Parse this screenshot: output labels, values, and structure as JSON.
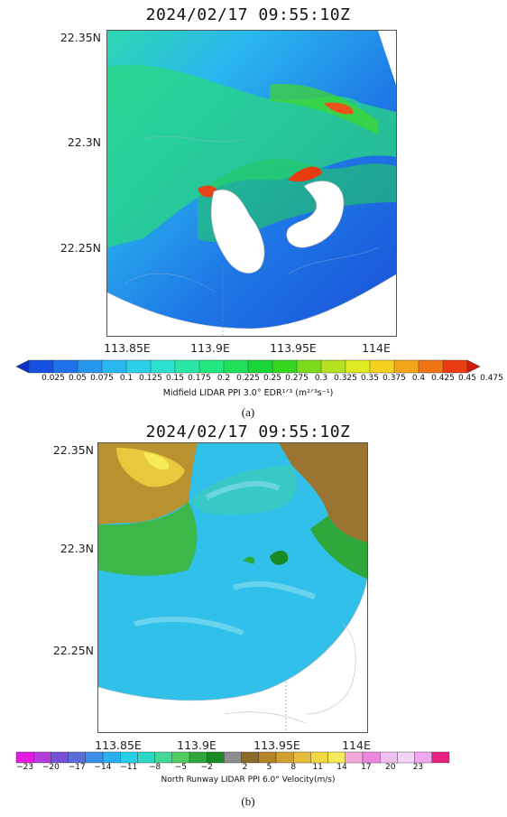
{
  "panel_a": {
    "title": "2024/02/17  09:55:10Z",
    "y_ticks": [
      "22.35N",
      "22.3N",
      "22.25N"
    ],
    "x_ticks": [
      "113.85E",
      "113.9E",
      "113.95E",
      "114E"
    ],
    "colorbar": {
      "ticks": [
        "0.025",
        "0.05",
        "0.075",
        "0.1",
        "0.125",
        "0.15",
        "0.175",
        "0.2",
        "0.225",
        "0.25",
        "0.275",
        "0.3",
        "0.325",
        "0.35",
        "0.375",
        "0.4",
        "0.425",
        "0.45",
        "0.475"
      ],
      "colors": [
        "#1030c8",
        "#1650e0",
        "#1e72ea",
        "#2496ee",
        "#28b6ee",
        "#2ccfe8",
        "#2ce0d0",
        "#28e8a8",
        "#22e880",
        "#1ee05a",
        "#18d63a",
        "#34d61e",
        "#7ada1c",
        "#b4e21e",
        "#e0ea22",
        "#f6d020",
        "#f4a418",
        "#f07414",
        "#e83c10",
        "#d41a0c"
      ],
      "label": "Midfield LIDAR PPI 3.0° EDR¹ᐟ³ (m²ᐟ³s⁻¹)"
    },
    "caption": "(a)"
  },
  "panel_b": {
    "title": "2024/02/17  09:55:10Z",
    "y_ticks": [
      "22.35N",
      "22.3N",
      "22.25N"
    ],
    "x_ticks": [
      "113.85E",
      "113.9E",
      "113.95E",
      "114E"
    ],
    "colorbar": {
      "ticks": [
        "−23",
        "−20",
        "−17",
        "−14",
        "−11",
        "−8",
        "−5",
        "−2",
        "2",
        "5",
        "8",
        "11",
        "14",
        "17",
        "20",
        "23"
      ],
      "colors": [
        "#e21ae2",
        "#b43cdc",
        "#7850d8",
        "#5a6ed8",
        "#3c8ee6",
        "#2ab0f0",
        "#26cfe8",
        "#2cd8c2",
        "#44d898",
        "#52cc60",
        "#2ea83a",
        "#1a8a26",
        "#8c8c8c",
        "#8a6a28",
        "#b4842a",
        "#d2a032",
        "#e6bc3a",
        "#f2d842",
        "#f6ea58",
        "#f2a8d8",
        "#ec88e0",
        "#f0c0f0",
        "#f4d4f6",
        "#f0a8f0",
        "#e82080"
      ],
      "label": "North Runway LIDAR PPI 6.0° Velocity(m/s)"
    },
    "caption": "(b)"
  }
}
